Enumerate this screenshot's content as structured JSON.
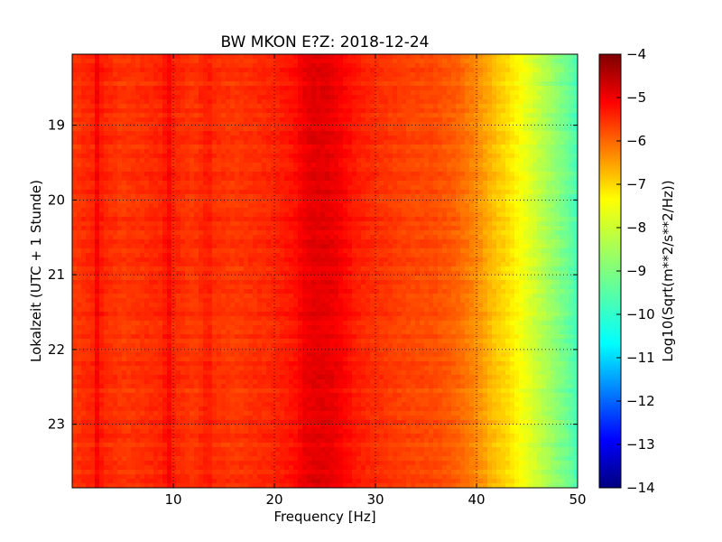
{
  "chart_data": {
    "type": "heatmap",
    "title": "BW MKON E?Z: 2018-12-24",
    "xlabel": "Frequency [Hz]",
    "ylabel": "Lokalzeit (UTC + 1 Stunde)",
    "xlim": [
      0,
      50
    ],
    "ylim": [
      18.05,
      23.85
    ],
    "y_inverted": true,
    "x_ticks": [
      10,
      20,
      30,
      40,
      50
    ],
    "x_tick_labels": [
      "10",
      "20",
      "30",
      "40",
      "50"
    ],
    "y_ticks": [
      19,
      20,
      21,
      22,
      23
    ],
    "y_tick_labels": [
      "19",
      "20",
      "21",
      "22",
      "23"
    ],
    "grid": true,
    "colorbar": {
      "label": "Log10(Sqrt(m**2/s**2/Hz))",
      "range": [
        -14,
        -4
      ],
      "ticks": [
        -4,
        -5,
        -6,
        -7,
        -8,
        -9,
        -10,
        -11,
        -12,
        -13,
        -14
      ],
      "tick_labels": [
        "−4",
        "−5",
        "−6",
        "−7",
        "−8",
        "−9",
        "−10",
        "−11",
        "−12",
        "−13",
        "−14"
      ],
      "colormap": "jet"
    },
    "spectrum_profile": {
      "frequency_hz": [
        0,
        2,
        2.5,
        3,
        5,
        9,
        9.5,
        10,
        12,
        13.5,
        14,
        16,
        18,
        20,
        22,
        23,
        24,
        25,
        26,
        27,
        28,
        30,
        33,
        36,
        38,
        39,
        40,
        41,
        42,
        43,
        44,
        45,
        46,
        47,
        48,
        49,
        50
      ],
      "log10_amplitude": [
        -5.8,
        -5.6,
        -5.2,
        -5.6,
        -5.8,
        -5.6,
        -5.2,
        -5.6,
        -5.8,
        -5.5,
        -5.7,
        -5.8,
        -5.7,
        -5.6,
        -5.4,
        -5.1,
        -5.0,
        -5.0,
        -5.1,
        -5.3,
        -5.5,
        -5.7,
        -5.9,
        -6.0,
        -6.2,
        -6.4,
        -6.6,
        -6.9,
        -7.2,
        -7.4,
        -7.7,
        -8.0,
        -8.3,
        -8.6,
        -8.9,
        -9.2,
        -9.6
      ]
    }
  }
}
